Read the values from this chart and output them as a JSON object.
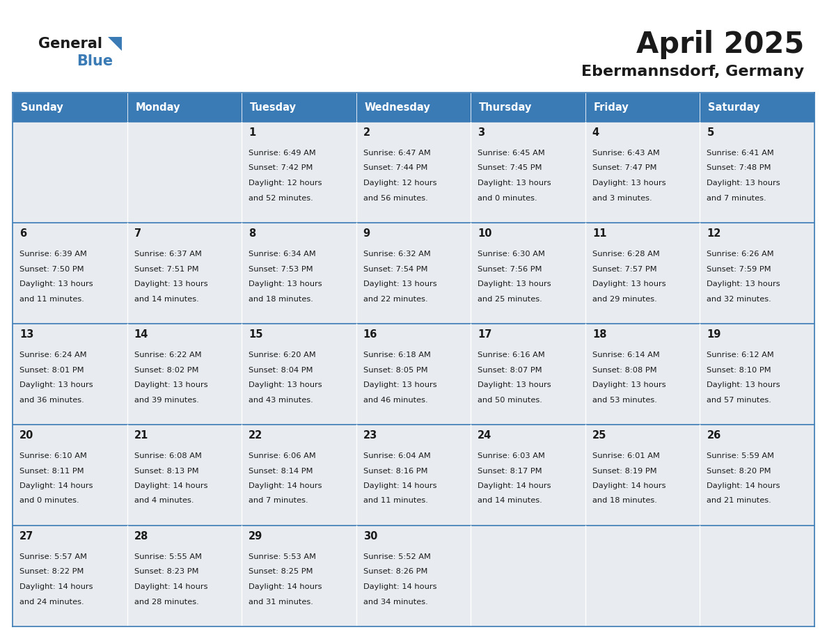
{
  "title": "April 2025",
  "subtitle": "Ebermannsdorf, Germany",
  "header_bg_color": "#3a7ab5",
  "header_text_color": "#ffffff",
  "cell_bg_color": "#e8ecf0",
  "cell_empty_bg_color": "#e8ecf0",
  "border_color": "#3a7ab5",
  "text_color": "#1a1a1a",
  "days_of_week": [
    "Sunday",
    "Monday",
    "Tuesday",
    "Wednesday",
    "Thursday",
    "Friday",
    "Saturday"
  ],
  "calendar_data": [
    [
      {
        "day": "",
        "sunrise": "",
        "sunset": "",
        "daylight": ""
      },
      {
        "day": "",
        "sunrise": "",
        "sunset": "",
        "daylight": ""
      },
      {
        "day": "1",
        "sunrise": "6:49 AM",
        "sunset": "7:42 PM",
        "daylight": "12 hours\nand 52 minutes."
      },
      {
        "day": "2",
        "sunrise": "6:47 AM",
        "sunset": "7:44 PM",
        "daylight": "12 hours\nand 56 minutes."
      },
      {
        "day": "3",
        "sunrise": "6:45 AM",
        "sunset": "7:45 PM",
        "daylight": "13 hours\nand 0 minutes."
      },
      {
        "day": "4",
        "sunrise": "6:43 AM",
        "sunset": "7:47 PM",
        "daylight": "13 hours\nand 3 minutes."
      },
      {
        "day": "5",
        "sunrise": "6:41 AM",
        "sunset": "7:48 PM",
        "daylight": "13 hours\nand 7 minutes."
      }
    ],
    [
      {
        "day": "6",
        "sunrise": "6:39 AM",
        "sunset": "7:50 PM",
        "daylight": "13 hours\nand 11 minutes."
      },
      {
        "day": "7",
        "sunrise": "6:37 AM",
        "sunset": "7:51 PM",
        "daylight": "13 hours\nand 14 minutes."
      },
      {
        "day": "8",
        "sunrise": "6:34 AM",
        "sunset": "7:53 PM",
        "daylight": "13 hours\nand 18 minutes."
      },
      {
        "day": "9",
        "sunrise": "6:32 AM",
        "sunset": "7:54 PM",
        "daylight": "13 hours\nand 22 minutes."
      },
      {
        "day": "10",
        "sunrise": "6:30 AM",
        "sunset": "7:56 PM",
        "daylight": "13 hours\nand 25 minutes."
      },
      {
        "day": "11",
        "sunrise": "6:28 AM",
        "sunset": "7:57 PM",
        "daylight": "13 hours\nand 29 minutes."
      },
      {
        "day": "12",
        "sunrise": "6:26 AM",
        "sunset": "7:59 PM",
        "daylight": "13 hours\nand 32 minutes."
      }
    ],
    [
      {
        "day": "13",
        "sunrise": "6:24 AM",
        "sunset": "8:01 PM",
        "daylight": "13 hours\nand 36 minutes."
      },
      {
        "day": "14",
        "sunrise": "6:22 AM",
        "sunset": "8:02 PM",
        "daylight": "13 hours\nand 39 minutes."
      },
      {
        "day": "15",
        "sunrise": "6:20 AM",
        "sunset": "8:04 PM",
        "daylight": "13 hours\nand 43 minutes."
      },
      {
        "day": "16",
        "sunrise": "6:18 AM",
        "sunset": "8:05 PM",
        "daylight": "13 hours\nand 46 minutes."
      },
      {
        "day": "17",
        "sunrise": "6:16 AM",
        "sunset": "8:07 PM",
        "daylight": "13 hours\nand 50 minutes."
      },
      {
        "day": "18",
        "sunrise": "6:14 AM",
        "sunset": "8:08 PM",
        "daylight": "13 hours\nand 53 minutes."
      },
      {
        "day": "19",
        "sunrise": "6:12 AM",
        "sunset": "8:10 PM",
        "daylight": "13 hours\nand 57 minutes."
      }
    ],
    [
      {
        "day": "20",
        "sunrise": "6:10 AM",
        "sunset": "8:11 PM",
        "daylight": "14 hours\nand 0 minutes."
      },
      {
        "day": "21",
        "sunrise": "6:08 AM",
        "sunset": "8:13 PM",
        "daylight": "14 hours\nand 4 minutes."
      },
      {
        "day": "22",
        "sunrise": "6:06 AM",
        "sunset": "8:14 PM",
        "daylight": "14 hours\nand 7 minutes."
      },
      {
        "day": "23",
        "sunrise": "6:04 AM",
        "sunset": "8:16 PM",
        "daylight": "14 hours\nand 11 minutes."
      },
      {
        "day": "24",
        "sunrise": "6:03 AM",
        "sunset": "8:17 PM",
        "daylight": "14 hours\nand 14 minutes."
      },
      {
        "day": "25",
        "sunrise": "6:01 AM",
        "sunset": "8:19 PM",
        "daylight": "14 hours\nand 18 minutes."
      },
      {
        "day": "26",
        "sunrise": "5:59 AM",
        "sunset": "8:20 PM",
        "daylight": "14 hours\nand 21 minutes."
      }
    ],
    [
      {
        "day": "27",
        "sunrise": "5:57 AM",
        "sunset": "8:22 PM",
        "daylight": "14 hours\nand 24 minutes."
      },
      {
        "day": "28",
        "sunrise": "5:55 AM",
        "sunset": "8:23 PM",
        "daylight": "14 hours\nand 28 minutes."
      },
      {
        "day": "29",
        "sunrise": "5:53 AM",
        "sunset": "8:25 PM",
        "daylight": "14 hours\nand 31 minutes."
      },
      {
        "day": "30",
        "sunrise": "5:52 AM",
        "sunset": "8:26 PM",
        "daylight": "14 hours\nand 34 minutes."
      },
      {
        "day": "",
        "sunrise": "",
        "sunset": "",
        "daylight": ""
      },
      {
        "day": "",
        "sunrise": "",
        "sunset": "",
        "daylight": ""
      },
      {
        "day": "",
        "sunrise": "",
        "sunset": "",
        "daylight": ""
      }
    ]
  ]
}
